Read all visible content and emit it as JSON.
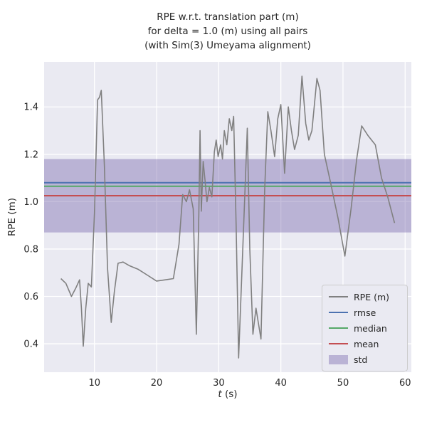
{
  "figure": {
    "title_lines": [
      "RPE w.r.t. translation part (m)",
      "for delta = 1.0 (m) using all pairs",
      "(with Sim(3) Umeyama alignment)"
    ],
    "xlabel_italic": "t",
    "xlabel_rest": " (s)",
    "ylabel": "RPE (m)"
  },
  "legend": {
    "items": [
      {
        "label": "RPE (m)",
        "type": "line",
        "color_key": "rpe"
      },
      {
        "label": "rmse",
        "type": "line",
        "color_key": "rmse"
      },
      {
        "label": "median",
        "type": "line",
        "color_key": "median"
      },
      {
        "label": "mean",
        "type": "line",
        "color_key": "mean"
      },
      {
        "label": "std",
        "type": "patch",
        "color_key": "std"
      }
    ]
  },
  "chart_data": {
    "type": "line",
    "title": "RPE w.r.t. translation part (m) for delta = 1.0 (m) using all pairs (with Sim(3) Umeyama alignment)",
    "xlabel": "t (s)",
    "ylabel": "RPE (m)",
    "xlim": [
      1.9,
      61.0
    ],
    "ylim": [
      0.28,
      1.59
    ],
    "xticks": [
      10,
      20,
      30,
      40,
      50,
      60
    ],
    "yticks": [
      0.4,
      0.6,
      0.8,
      1.0,
      1.2,
      1.4
    ],
    "grid": true,
    "legend_position": "lower right",
    "stats": {
      "rmse": 1.08,
      "median": 1.065,
      "mean": 1.025,
      "std": 0.155,
      "std_band": [
        0.87,
        1.18
      ]
    },
    "colors": {
      "rpe": "#808080",
      "rmse": "#4C72B0",
      "median": "#55A868",
      "mean": "#C44E52",
      "std": "#8172B2",
      "std_alpha": 0.45,
      "axes_bg": "#EAEAF2",
      "grid": "#FFFFFF",
      "text": "#262626"
    },
    "series": [
      {
        "name": "RPE (m)",
        "points": [
          [
            4.6,
            0.675
          ],
          [
            5.4,
            0.655
          ],
          [
            6.3,
            0.6
          ],
          [
            7.0,
            0.635
          ],
          [
            7.6,
            0.67
          ],
          [
            7.9,
            0.55
          ],
          [
            8.2,
            0.39
          ],
          [
            8.6,
            0.55
          ],
          [
            9.0,
            0.655
          ],
          [
            9.5,
            0.64
          ],
          [
            10.0,
            0.95
          ],
          [
            10.5,
            1.43
          ],
          [
            10.8,
            1.44
          ],
          [
            11.1,
            1.47
          ],
          [
            11.6,
            1.15
          ],
          [
            12.1,
            0.72
          ],
          [
            12.7,
            0.49
          ],
          [
            13.2,
            0.62
          ],
          [
            13.8,
            0.74
          ],
          [
            14.6,
            0.745
          ],
          [
            15.6,
            0.73
          ],
          [
            17.0,
            0.715
          ],
          [
            18.5,
            0.69
          ],
          [
            20.0,
            0.665
          ],
          [
            21.4,
            0.67
          ],
          [
            22.7,
            0.675
          ],
          [
            23.6,
            0.82
          ],
          [
            24.2,
            1.03
          ],
          [
            24.8,
            1.0
          ],
          [
            25.3,
            1.05
          ],
          [
            25.9,
            0.97
          ],
          [
            26.4,
            0.44
          ],
          [
            26.8,
            0.95
          ],
          [
            27.0,
            1.3
          ],
          [
            27.2,
            0.96
          ],
          [
            27.5,
            1.17
          ],
          [
            27.8,
            1.09
          ],
          [
            28.1,
            1.0
          ],
          [
            28.5,
            1.06
          ],
          [
            28.9,
            1.02
          ],
          [
            29.3,
            1.21
          ],
          [
            29.6,
            1.26
          ],
          [
            29.9,
            1.19
          ],
          [
            30.3,
            1.24
          ],
          [
            30.6,
            1.18
          ],
          [
            30.9,
            1.3
          ],
          [
            31.3,
            1.24
          ],
          [
            31.7,
            1.35
          ],
          [
            32.1,
            1.3
          ],
          [
            32.4,
            1.36
          ],
          [
            32.8,
            0.9
          ],
          [
            33.2,
            0.34
          ],
          [
            33.8,
            0.75
          ],
          [
            34.3,
            1.1
          ],
          [
            34.6,
            1.31
          ],
          [
            35.0,
            0.8
          ],
          [
            35.5,
            0.44
          ],
          [
            36.0,
            0.55
          ],
          [
            36.8,
            0.42
          ],
          [
            37.4,
            1.05
          ],
          [
            37.9,
            1.38
          ],
          [
            38.4,
            1.3
          ],
          [
            39.0,
            1.19
          ],
          [
            39.5,
            1.35
          ],
          [
            40.0,
            1.41
          ],
          [
            40.6,
            1.12
          ],
          [
            41.2,
            1.4
          ],
          [
            41.7,
            1.3
          ],
          [
            42.2,
            1.22
          ],
          [
            42.8,
            1.28
          ],
          [
            43.4,
            1.53
          ],
          [
            44.0,
            1.33
          ],
          [
            44.5,
            1.26
          ],
          [
            45.0,
            1.3
          ],
          [
            45.8,
            1.52
          ],
          [
            46.3,
            1.47
          ],
          [
            47.0,
            1.2
          ],
          [
            48.0,
            1.08
          ],
          [
            49.2,
            0.93
          ],
          [
            50.3,
            0.77
          ],
          [
            51.3,
            0.97
          ],
          [
            52.2,
            1.18
          ],
          [
            53.0,
            1.32
          ],
          [
            54.0,
            1.28
          ],
          [
            55.2,
            1.24
          ],
          [
            56.2,
            1.1
          ],
          [
            57.2,
            1.02
          ],
          [
            58.3,
            0.91
          ]
        ]
      }
    ]
  }
}
